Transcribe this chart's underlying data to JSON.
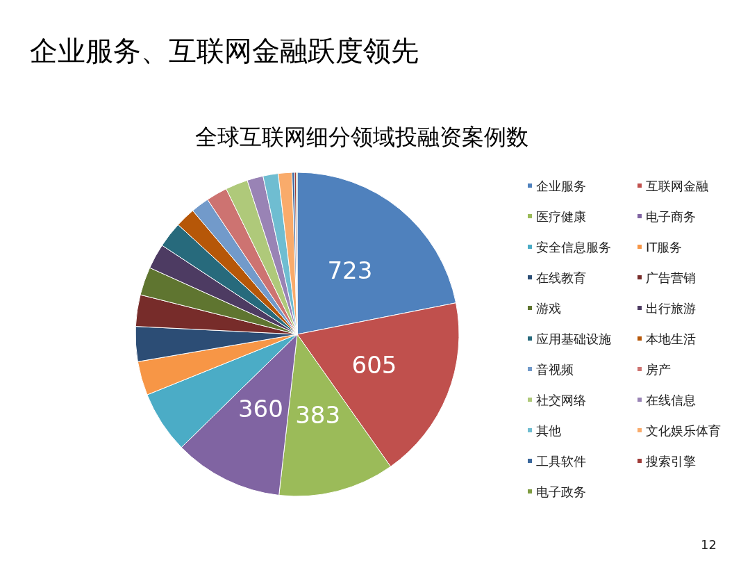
{
  "chart_data": {
    "type": "pie",
    "title": "企业服务、互联网金融跃度领先",
    "subtitle": "全球互联网细分领域投融资案例数",
    "categories": [
      "企业服务",
      "互联网金融",
      "医疗健康",
      "电子商务",
      "安全信息服务",
      "IT服务",
      "在线教育",
      "广告营销",
      "游戏",
      "出行旅游",
      "应用基础设施",
      "本地生活",
      "音视频",
      "房产",
      "社交网络",
      "在线信息",
      "其他",
      "文化娱乐体育",
      "工具软件",
      "搜索引擎",
      "电子政务"
    ],
    "values": [
      723,
      605,
      383,
      360,
      205,
      112,
      115,
      104,
      93,
      83,
      85,
      66,
      60,
      70,
      74,
      53,
      50,
      45,
      8,
      6,
      3
    ],
    "value_labels": [
      "723",
      "605",
      "383",
      "360",
      null,
      null,
      null,
      null,
      null,
      null,
      null,
      null,
      null,
      null,
      null,
      null,
      null,
      null,
      null,
      null,
      null
    ],
    "colors": [
      "#4f81bd",
      "#c0504d",
      "#9bbb59",
      "#8064a2",
      "#4bacc6",
      "#f79646",
      "#2c4d75",
      "#772c2a",
      "#5f7530",
      "#4d3b62",
      "#276a7c",
      "#b65708",
      "#729aca",
      "#cd7371",
      "#afc97a",
      "#9983b5",
      "#6fbdd1",
      "#f9ab6b",
      "#3a679c",
      "#a03b38",
      "#7e9c40"
    ],
    "legend": "right",
    "annotations": [
      "12"
    ]
  }
}
